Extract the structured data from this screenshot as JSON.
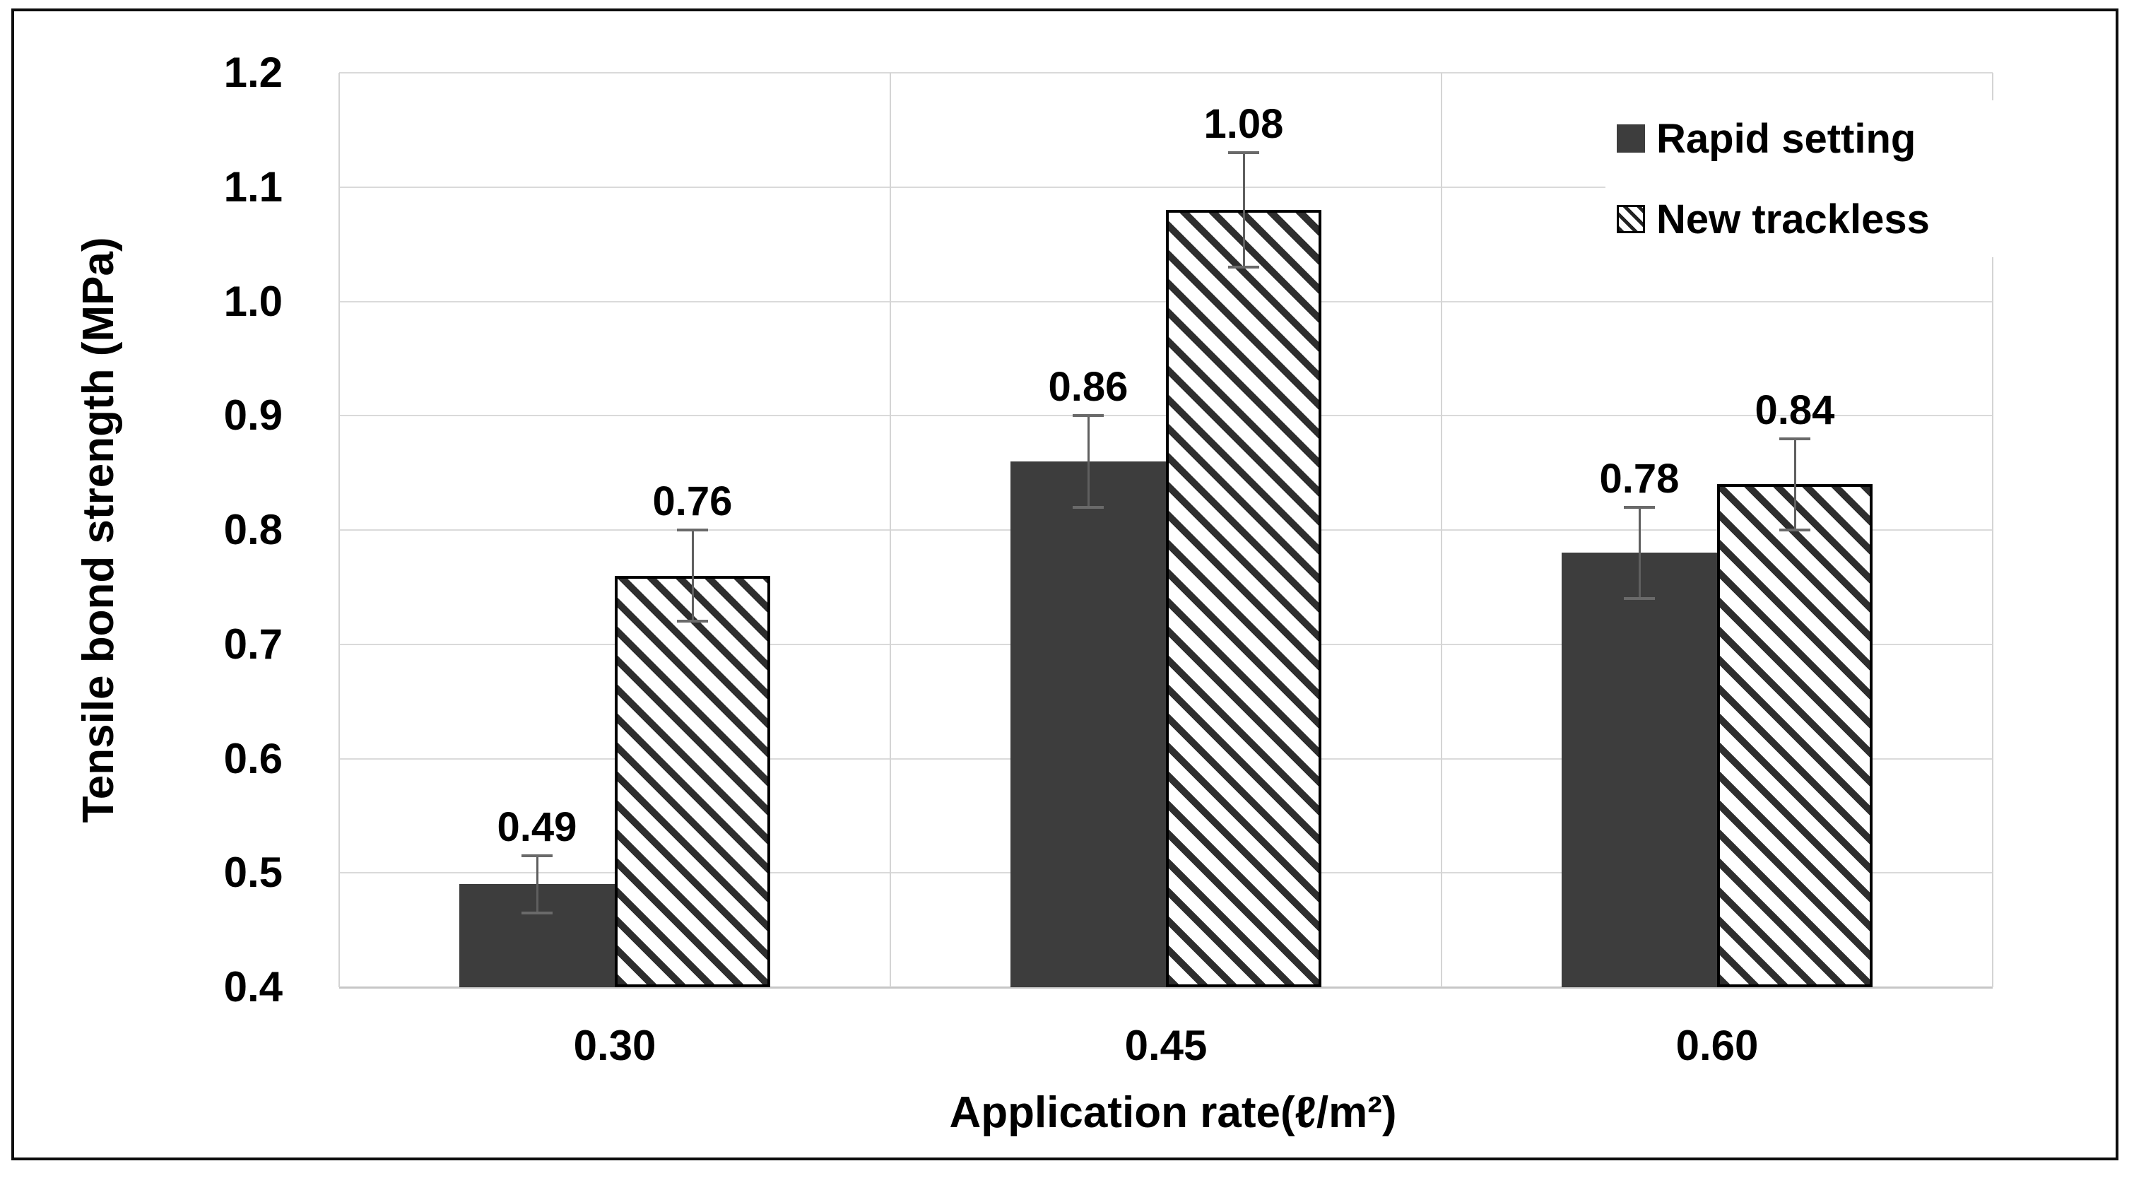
{
  "chart_data": {
    "type": "bar",
    "title": "",
    "xlabel": "Application rate(ℓ/m²)",
    "ylabel": "Tensile bond strength (MPa)",
    "categories": [
      "0.30",
      "0.45",
      "0.60"
    ],
    "series": [
      {
        "name": "Rapid setting",
        "style": "solid",
        "color": "#3d3d3d",
        "values": [
          0.49,
          0.86,
          0.78
        ],
        "labels": [
          "0.49",
          "0.86",
          "0.78"
        ],
        "errors": [
          0.025,
          0.04,
          0.04
        ]
      },
      {
        "name": "New trackless",
        "style": "hatched",
        "hatch_stripe_color": "#2e2e2e",
        "values": [
          0.76,
          1.08,
          0.84
        ],
        "labels": [
          "0.76",
          "1.08",
          "0.84"
        ],
        "errors": [
          0.04,
          0.05,
          0.04
        ]
      }
    ],
    "yticks": [
      {
        "label": "1.2",
        "value": 1.2
      },
      {
        "label": "1.1",
        "value": 1.1
      },
      {
        "label": "1.0",
        "value": 1.0
      },
      {
        "label": "0.9",
        "value": 0.9
      },
      {
        "label": "0.8",
        "value": 0.8
      },
      {
        "label": "0.7",
        "value": 0.7
      },
      {
        "label": "0.6",
        "value": 0.6
      },
      {
        "label": "0.5",
        "value": 0.5
      },
      {
        "label": "0.4",
        "value": 0.4
      }
    ],
    "ylim": [
      0.4,
      1.2
    ],
    "grid": "horizontal gridlines plus vertical category separators",
    "legend_position": "top-right inside plot"
  },
  "colors": {
    "bar_solid": "#3d3d3d",
    "hatch_stripe": "#2e2e2e",
    "gridline": "#dadada",
    "axis_line": "#c6c6c6",
    "error_bar": "#5f5f5f",
    "text": "#000000",
    "frame": "#0d0d0d",
    "background": "#ffffff"
  }
}
